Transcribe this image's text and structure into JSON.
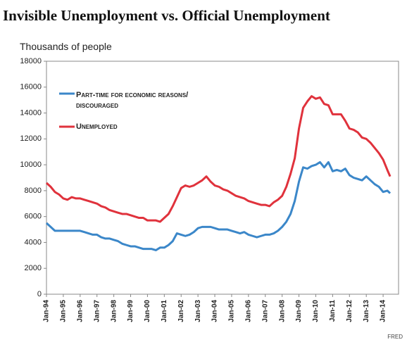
{
  "chart_data": {
    "type": "line",
    "title": "Invisible Unemployment vs. Official Unemployment",
    "y_label": "Thousands of people",
    "source": "FRED",
    "x": [
      "1994-01",
      "1994-04",
      "1994-07",
      "1994-10",
      "1995-01",
      "1995-04",
      "1995-07",
      "1995-10",
      "1996-01",
      "1996-04",
      "1996-07",
      "1996-10",
      "1997-01",
      "1997-04",
      "1997-07",
      "1997-10",
      "1998-01",
      "1998-04",
      "1998-07",
      "1998-10",
      "1999-01",
      "1999-04",
      "1999-07",
      "1999-10",
      "2000-01",
      "2000-04",
      "2000-07",
      "2000-10",
      "2001-01",
      "2001-04",
      "2001-07",
      "2001-10",
      "2002-01",
      "2002-04",
      "2002-07",
      "2002-10",
      "2003-01",
      "2003-04",
      "2003-07",
      "2003-10",
      "2004-01",
      "2004-04",
      "2004-07",
      "2004-10",
      "2005-01",
      "2005-04",
      "2005-07",
      "2005-10",
      "2006-01",
      "2006-04",
      "2006-07",
      "2006-10",
      "2007-01",
      "2007-04",
      "2007-07",
      "2007-10",
      "2008-01",
      "2008-04",
      "2008-07",
      "2008-10",
      "2009-01",
      "2009-04",
      "2009-07",
      "2009-10",
      "2010-01",
      "2010-04",
      "2010-07",
      "2010-10",
      "2011-01",
      "2011-04",
      "2011-07",
      "2011-10",
      "2012-01",
      "2012-04",
      "2012-07",
      "2012-10",
      "2013-01",
      "2013-04",
      "2013-07",
      "2013-10",
      "2014-01",
      "2014-04",
      "2014-06"
    ],
    "series": [
      {
        "name": "Part-time for economic reasons/ discouraged",
        "color": "#3b87c9",
        "values": [
          5500,
          5200,
          4900,
          4900,
          4900,
          4900,
          4900,
          4900,
          4900,
          4800,
          4700,
          4600,
          4600,
          4400,
          4300,
          4300,
          4200,
          4100,
          3900,
          3800,
          3700,
          3700,
          3600,
          3500,
          3500,
          3500,
          3400,
          3600,
          3600,
          3800,
          4100,
          4700,
          4600,
          4500,
          4600,
          4800,
          5100,
          5200,
          5200,
          5200,
          5100,
          5000,
          5000,
          5000,
          4900,
          4800,
          4700,
          4800,
          4600,
          4500,
          4400,
          4500,
          4600,
          4600,
          4700,
          4900,
          5200,
          5600,
          6200,
          7200,
          8700,
          9800,
          9700,
          9900,
          10000,
          10200,
          9800,
          10200,
          9500,
          9600,
          9500,
          9700,
          9200,
          9000,
          8900,
          8800,
          9100,
          8800,
          8500,
          8300,
          7900,
          8000,
          7800
        ]
      },
      {
        "name": "Unemployed",
        "color": "#e0323c",
        "values": [
          8600,
          8300,
          7900,
          7700,
          7400,
          7300,
          7500,
          7400,
          7400,
          7300,
          7200,
          7100,
          7000,
          6800,
          6700,
          6500,
          6400,
          6300,
          6200,
          6200,
          6100,
          6000,
          5900,
          5900,
          5700,
          5700,
          5700,
          5600,
          5900,
          6200,
          6800,
          7500,
          8200,
          8400,
          8300,
          8400,
          8600,
          8800,
          9100,
          8700,
          8400,
          8300,
          8100,
          8000,
          7800,
          7600,
          7500,
          7400,
          7200,
          7100,
          7000,
          6900,
          6900,
          6800,
          7100,
          7300,
          7600,
          8300,
          9300,
          10500,
          12800,
          14400,
          14900,
          15300,
          15100,
          15200,
          14700,
          14600,
          13900,
          13900,
          13900,
          13400,
          12800,
          12700,
          12500,
          12100,
          12000,
          11700,
          11300,
          10900,
          10400,
          9600,
          9100
        ]
      }
    ],
    "xlim": [
      "1994-01",
      "2014-12"
    ],
    "xticks": [
      {
        "value": "1994-01",
        "label": "Jan-94"
      },
      {
        "value": "1995-01",
        "label": "Jan-95"
      },
      {
        "value": "1996-01",
        "label": "Jan-96"
      },
      {
        "value": "1997-01",
        "label": "Jan-97"
      },
      {
        "value": "1998-01",
        "label": "Jan-98"
      },
      {
        "value": "1999-01",
        "label": "Jan-99"
      },
      {
        "value": "2000-01",
        "label": "Jan-00"
      },
      {
        "value": "2001-01",
        "label": "Jan-01"
      },
      {
        "value": "2002-01",
        "label": "Jan-02"
      },
      {
        "value": "2003-01",
        "label": "Jan-03"
      },
      {
        "value": "2004-01",
        "label": "Jan-04"
      },
      {
        "value": "2005-01",
        "label": "Jan-05"
      },
      {
        "value": "2006-01",
        "label": "Jan-06"
      },
      {
        "value": "2007-01",
        "label": "Jan-07"
      },
      {
        "value": "2008-01",
        "label": "Jan-08"
      },
      {
        "value": "2009-01",
        "label": "Jan-09"
      },
      {
        "value": "2010-01",
        "label": "Jan-10"
      },
      {
        "value": "2011-01",
        "label": "Jan-11"
      },
      {
        "value": "2012-01",
        "label": "Jan-12"
      },
      {
        "value": "2013-01",
        "label": "Jan-13"
      },
      {
        "value": "2014-01",
        "label": "Jan-14"
      }
    ],
    "ylim": [
      0,
      18000
    ],
    "yticks": [
      0,
      2000,
      4000,
      6000,
      8000,
      10000,
      12000,
      14000,
      16000,
      18000
    ],
    "grid": false
  }
}
